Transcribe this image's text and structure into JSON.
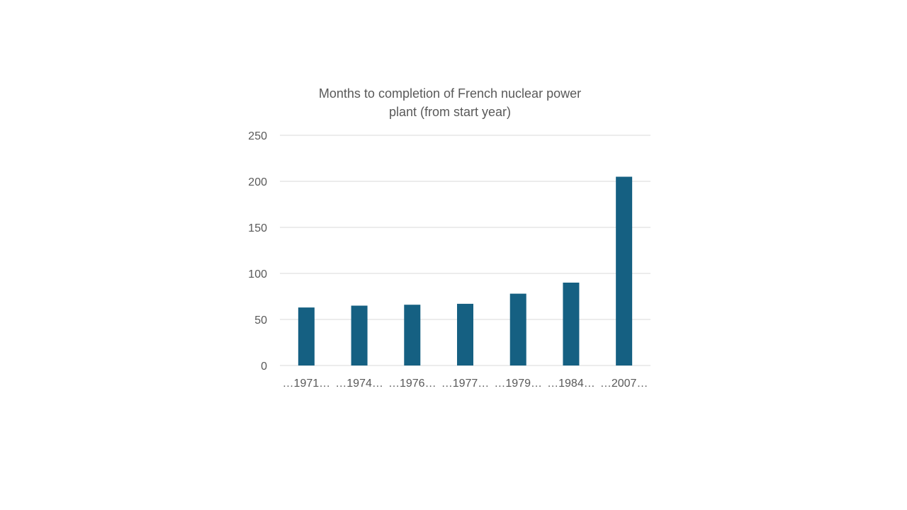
{
  "chart_data": {
    "type": "bar",
    "title_lines": [
      "Months to completion of French nuclear power",
      "plant (from start year)"
    ],
    "categories": [
      "…1971…",
      "…1974…",
      "…1976…",
      "…1977…",
      "…1979…",
      "…1984…",
      "…2007…"
    ],
    "values": [
      63,
      65,
      66,
      67,
      78,
      90,
      205
    ],
    "xlabel": "",
    "ylabel": "",
    "ylim": [
      0,
      250
    ],
    "yticks": [
      0,
      50,
      100,
      150,
      200,
      250
    ],
    "grid": true,
    "legend": "none",
    "colors": {
      "bar": "#156082",
      "grid": "#d9d9d9",
      "text": "#595959"
    }
  }
}
